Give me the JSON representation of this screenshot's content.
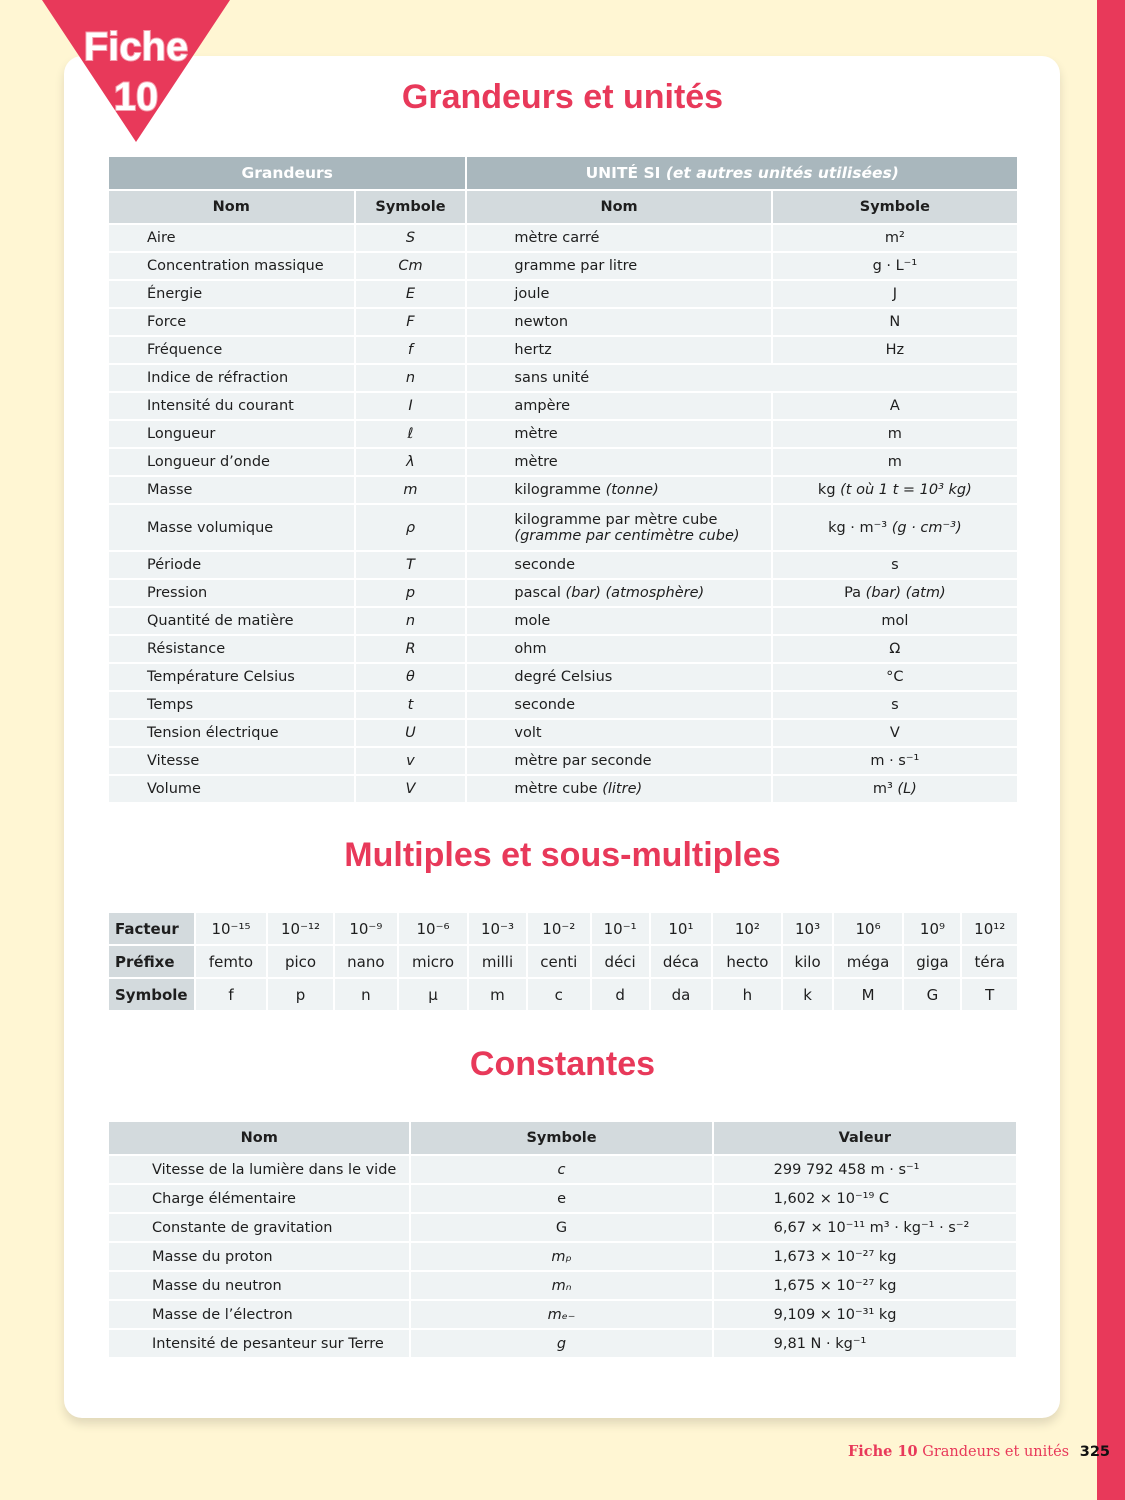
{
  "badge": {
    "label": "Fiche",
    "number": "10"
  },
  "colors": {
    "accent": "#e8395a",
    "header_dark": "#a9b7bd",
    "header_light": "#d3dadd",
    "cell": "#eff3f4",
    "background": "#fff6d3"
  },
  "units": {
    "title": "Grandeurs et unités",
    "group_quantities": "Grandeurs",
    "group_si": "UNITÉ SI",
    "group_si_alt": "(et autres unités utilisées)",
    "col_name": "Nom",
    "col_symbol": "Symbole",
    "col_unit_name": "Nom",
    "col_unit_symbol": "Symbole",
    "rows": [
      {
        "name": "Aire",
        "symbol": "S",
        "unit": "mètre carré",
        "unit_alt": "",
        "unit_symbol": "m²",
        "unit_symbol_alt": ""
      },
      {
        "name": "Concentration massique",
        "symbol": "Cm",
        "unit": "gramme par litre",
        "unit_alt": "",
        "unit_symbol": "g · L⁻¹",
        "unit_symbol_alt": ""
      },
      {
        "name": "Énergie",
        "symbol": "E",
        "unit": "joule",
        "unit_alt": "",
        "unit_symbol": "J",
        "unit_symbol_alt": ""
      },
      {
        "name": "Force",
        "symbol": "F",
        "unit": "newton",
        "unit_alt": "",
        "unit_symbol": "N",
        "unit_symbol_alt": ""
      },
      {
        "name": "Fréquence",
        "symbol": "f",
        "unit": "hertz",
        "unit_alt": "",
        "unit_symbol": "Hz",
        "unit_symbol_alt": ""
      },
      {
        "name": "Indice de réfraction",
        "symbol": "n",
        "unit": "sans unité",
        "unit_alt": "",
        "unit_symbol": "",
        "unit_symbol_alt": "",
        "merged": true
      },
      {
        "name": "Intensité du courant",
        "symbol": "I",
        "unit": "ampère",
        "unit_alt": "",
        "unit_symbol": "A",
        "unit_symbol_alt": ""
      },
      {
        "name": "Longueur",
        "symbol": "ℓ",
        "unit": "mètre",
        "unit_alt": "",
        "unit_symbol": "m",
        "unit_symbol_alt": ""
      },
      {
        "name": "Longueur d’onde",
        "symbol": "λ",
        "unit": "mètre",
        "unit_alt": "",
        "unit_symbol": "m",
        "unit_symbol_alt": ""
      },
      {
        "name": "Masse",
        "symbol": "m",
        "unit": "kilogramme",
        "unit_alt": "(tonne)",
        "unit_symbol": "kg",
        "unit_symbol_alt": "(t où 1 t = 10³ kg)"
      },
      {
        "name": "Masse volumique",
        "symbol": "ρ",
        "unit": "kilogramme par mètre cube",
        "unit_alt": "(gramme par centimètre cube)",
        "unit_symbol": "kg · m⁻³",
        "unit_symbol_alt": "(g · cm⁻³)",
        "two_line": true
      },
      {
        "name": "Période",
        "symbol": "T",
        "unit": "seconde",
        "unit_alt": "",
        "unit_symbol": "s",
        "unit_symbol_alt": ""
      },
      {
        "name": "Pression",
        "symbol": "p",
        "unit": "pascal",
        "unit_alt": "(bar) (atmosphère)",
        "unit_symbol": "Pa",
        "unit_symbol_alt": "(bar) (atm)"
      },
      {
        "name": "Quantité de matière",
        "symbol": "n",
        "unit": "mole",
        "unit_alt": "",
        "unit_symbol": "mol",
        "unit_symbol_alt": ""
      },
      {
        "name": "Résistance",
        "symbol": "R",
        "unit": "ohm",
        "unit_alt": "",
        "unit_symbol": "Ω",
        "unit_symbol_alt": ""
      },
      {
        "name": "Température Celsius",
        "symbol": "θ",
        "unit": "degré Celsius",
        "unit_alt": "",
        "unit_symbol": "°C",
        "unit_symbol_alt": ""
      },
      {
        "name": "Temps",
        "symbol": "t",
        "unit": "seconde",
        "unit_alt": "",
        "unit_symbol": "s",
        "unit_symbol_alt": ""
      },
      {
        "name": "Tension électrique",
        "symbol": "U",
        "unit": "volt",
        "unit_alt": "",
        "unit_symbol": "V",
        "unit_symbol_alt": ""
      },
      {
        "name": "Vitesse",
        "symbol": "v",
        "unit": "mètre par seconde",
        "unit_alt": "",
        "unit_symbol": "m · s⁻¹",
        "unit_symbol_alt": ""
      },
      {
        "name": "Volume",
        "symbol": "V",
        "unit": "mètre cube",
        "unit_alt": "(litre)",
        "unit_symbol": "m³",
        "unit_symbol_alt": "(L)"
      }
    ]
  },
  "multiples": {
    "title": "Multiples et sous-multiples",
    "row_labels": [
      "Facteur",
      "Préfixe",
      "Symbole"
    ],
    "factors": [
      "10⁻¹⁵",
      "10⁻¹²",
      "10⁻⁹",
      "10⁻⁶",
      "10⁻³",
      "10⁻²",
      "10⁻¹",
      "10¹",
      "10²",
      "10³",
      "10⁶",
      "10⁹",
      "10¹²"
    ],
    "prefixes": [
      "femto",
      "pico",
      "nano",
      "micro",
      "milli",
      "centi",
      "déci",
      "déca",
      "hecto",
      "kilo",
      "méga",
      "giga",
      "téra"
    ],
    "symbols": [
      "f",
      "p",
      "n",
      "µ",
      "m",
      "c",
      "d",
      "da",
      "h",
      "k",
      "M",
      "G",
      "T"
    ]
  },
  "constants": {
    "title": "Constantes",
    "col_name": "Nom",
    "col_symbol": "Symbole",
    "col_value": "Valeur",
    "rows": [
      {
        "name": "Vitesse de la lumière dans le vide",
        "symbol": "c",
        "value": "299 792 458 m · s⁻¹"
      },
      {
        "name": "Charge élémentaire",
        "symbol": "e",
        "value": "1,602 × 10⁻¹⁹ C"
      },
      {
        "name": "Constante de gravitation",
        "symbol": "G",
        "value": "6,67 × 10⁻¹¹ m³ · kg⁻¹ · s⁻²"
      },
      {
        "name": "Masse du proton",
        "symbol": "mₚ",
        "value": "1,673 × 10⁻²⁷ kg"
      },
      {
        "name": "Masse du neutron",
        "symbol": "mₙ",
        "value": "1,675 × 10⁻²⁷ kg"
      },
      {
        "name": "Masse de l’électron",
        "symbol": "mₑ₋",
        "value": "9,109 × 10⁻³¹ kg"
      },
      {
        "name": "Intensité de pesanteur sur Terre",
        "symbol": "g",
        "value": "9,81 N · kg⁻¹"
      }
    ]
  },
  "footer": {
    "fiche": "Fiche 10",
    "section": "Grandeurs et unités",
    "page": "325"
  }
}
